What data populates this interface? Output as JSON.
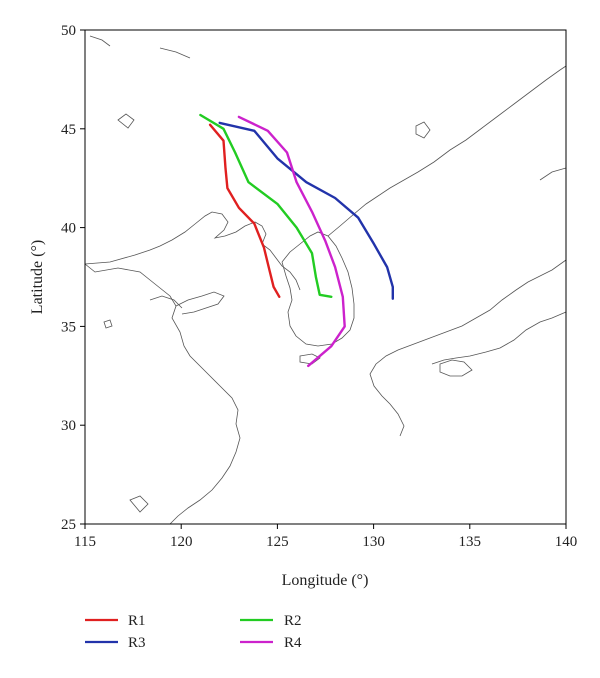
{
  "chart_data": {
    "type": "line",
    "xlabel": "Longitude (°)",
    "ylabel": "Latitude (°)",
    "xlim": [
      115,
      140
    ],
    "ylim": [
      25,
      50
    ],
    "x_ticks": [
      "115",
      "120",
      "125",
      "130",
      "135",
      "140"
    ],
    "y_ticks": [
      "25",
      "30",
      "35",
      "40",
      "45",
      "50"
    ],
    "grid": false,
    "legend_position": "bottom",
    "series": [
      {
        "name": "R1",
        "color": "#e02020",
        "points": [
          [
            121.5,
            45.2
          ],
          [
            122.2,
            44.4
          ],
          [
            122.3,
            43.0
          ],
          [
            122.4,
            42.0
          ],
          [
            123.0,
            41.0
          ],
          [
            123.8,
            40.2
          ],
          [
            124.3,
            39.0
          ],
          [
            124.6,
            37.8
          ],
          [
            124.8,
            37.0
          ],
          [
            125.1,
            36.5
          ]
        ]
      },
      {
        "name": "R2",
        "color": "#22cc22",
        "points": [
          [
            121.0,
            45.7
          ],
          [
            122.2,
            45.0
          ],
          [
            122.8,
            43.8
          ],
          [
            123.5,
            42.3
          ],
          [
            125.0,
            41.2
          ],
          [
            126.0,
            40.0
          ],
          [
            126.8,
            38.7
          ],
          [
            127.0,
            37.5
          ],
          [
            127.2,
            36.6
          ],
          [
            127.8,
            36.5
          ]
        ]
      },
      {
        "name": "R3",
        "color": "#2233aa",
        "points": [
          [
            122.0,
            45.3
          ],
          [
            123.8,
            44.9
          ],
          [
            125.0,
            43.5
          ],
          [
            126.5,
            42.3
          ],
          [
            128.0,
            41.5
          ],
          [
            129.2,
            40.5
          ],
          [
            130.0,
            39.2
          ],
          [
            130.7,
            38.0
          ],
          [
            131.0,
            37.0
          ],
          [
            131.0,
            36.4
          ]
        ]
      },
      {
        "name": "R4",
        "color": "#cc22cc",
        "points": [
          [
            123.0,
            45.6
          ],
          [
            124.5,
            44.9
          ],
          [
            125.5,
            43.8
          ],
          [
            126.0,
            42.3
          ],
          [
            126.8,
            40.8
          ],
          [
            127.5,
            39.3
          ],
          [
            128.0,
            38.0
          ],
          [
            128.4,
            36.5
          ],
          [
            128.5,
            35.0
          ],
          [
            127.8,
            34.0
          ],
          [
            126.6,
            33.0
          ]
        ]
      }
    ]
  },
  "legend": {
    "r1": {
      "label": "R1",
      "color": "#e02020"
    },
    "r2": {
      "label": "R2",
      "color": "#22cc22"
    },
    "r3": {
      "label": "R3",
      "color": "#2233aa"
    },
    "r4": {
      "label": "R4",
      "color": "#cc22cc"
    }
  }
}
